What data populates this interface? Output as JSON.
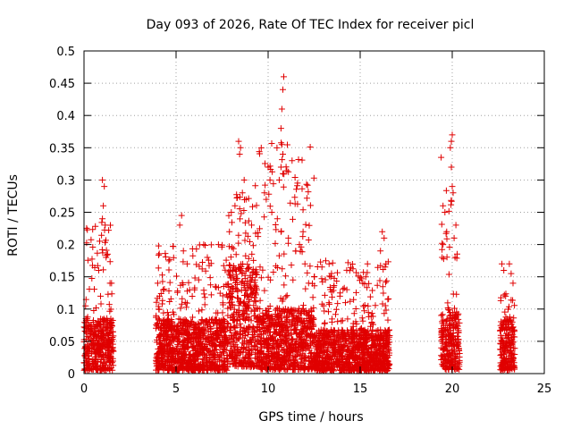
{
  "chart_data": {
    "type": "scatter",
    "title": "Day 093 of 2026, Rate Of TEC Index for receiver picl",
    "xlabel": "GPS time / hours",
    "ylabel": "ROTI / TECUs",
    "xlim": [
      0,
      25
    ],
    "ylim": [
      0,
      0.5
    ],
    "xticks": [
      "0",
      "5",
      "10",
      "15",
      "20",
      "25"
    ],
    "yticks": [
      "0",
      "0.05",
      "0.1",
      "0.15",
      "0.2",
      "0.25",
      "0.3",
      "0.35",
      "0.4",
      "0.45",
      "0.5"
    ],
    "grid": true,
    "marker": "+",
    "color": "#e00000",
    "series": [
      {
        "name": "ROTI",
        "clusters": [
          {
            "x_range": [
              0.0,
              1.6
            ],
            "y_typical": 0.05,
            "y_max": 0.3
          },
          {
            "x_range": [
              3.9,
              7.8
            ],
            "y_typical": 0.05,
            "y_max": 0.25
          },
          {
            "x_range": [
              7.8,
              9.4
            ],
            "y_typical": 0.1,
            "y_max": 0.36
          },
          {
            "x_range": [
              9.4,
              12.5
            ],
            "y_typical": 0.06,
            "y_max": 0.46
          },
          {
            "x_range": [
              12.5,
              16.6
            ],
            "y_typical": 0.04,
            "y_max": 0.22
          },
          {
            "x_range": [
              19.4,
              20.4
            ],
            "y_typical": 0.06,
            "y_max": 0.37
          },
          {
            "x_range": [
              22.6,
              23.4
            ],
            "y_typical": 0.05,
            "y_max": 0.17
          }
        ],
        "points": [
          [
            0.1,
            0.085
          ],
          [
            0.2,
            0.07
          ],
          [
            1.0,
            0.3
          ],
          [
            1.1,
            0.29
          ],
          [
            1.05,
            0.26
          ],
          [
            1.0,
            0.24
          ],
          [
            1.15,
            0.23
          ],
          [
            1.2,
            0.18
          ],
          [
            0.8,
            0.16
          ],
          [
            0.9,
            0.12
          ],
          [
            4.0,
            0.14
          ],
          [
            4.1,
            0.12
          ],
          [
            5.3,
            0.245
          ],
          [
            5.2,
            0.23
          ],
          [
            5.4,
            0.19
          ],
          [
            5.6,
            0.17
          ],
          [
            6.5,
            0.2
          ],
          [
            6.7,
            0.18
          ],
          [
            7.3,
            0.2
          ],
          [
            8.4,
            0.36
          ],
          [
            8.5,
            0.35
          ],
          [
            8.45,
            0.34
          ],
          [
            8.7,
            0.3
          ],
          [
            8.6,
            0.28
          ],
          [
            8.2,
            0.26
          ],
          [
            8.0,
            0.25
          ],
          [
            7.9,
            0.22
          ],
          [
            8.8,
            0.27
          ],
          [
            9.1,
            0.23
          ],
          [
            9.8,
            0.28
          ],
          [
            9.9,
            0.27
          ],
          [
            10.0,
            0.32
          ],
          [
            10.1,
            0.3
          ],
          [
            10.2,
            0.25
          ],
          [
            10.5,
            0.24
          ],
          [
            10.7,
            0.22
          ],
          [
            10.85,
            0.46
          ],
          [
            10.8,
            0.44
          ],
          [
            10.75,
            0.41
          ],
          [
            10.7,
            0.38
          ],
          [
            10.75,
            0.355
          ],
          [
            10.8,
            0.34
          ],
          [
            10.7,
            0.32
          ],
          [
            10.8,
            0.31
          ],
          [
            11.3,
            0.33
          ],
          [
            10.6,
            0.3
          ],
          [
            11.1,
            0.21
          ],
          [
            11.9,
            0.22
          ],
          [
            11.7,
            0.2
          ],
          [
            11.5,
            0.19
          ],
          [
            12.0,
            0.17
          ],
          [
            12.5,
            0.15
          ],
          [
            12.2,
            0.14
          ],
          [
            13.9,
            0.12
          ],
          [
            14.2,
            0.11
          ],
          [
            15.4,
            0.17
          ],
          [
            15.3,
            0.15
          ],
          [
            16.2,
            0.22
          ],
          [
            16.3,
            0.21
          ],
          [
            16.1,
            0.19
          ],
          [
            16.4,
            0.17
          ],
          [
            19.4,
            0.335
          ],
          [
            19.5,
            0.26
          ],
          [
            19.6,
            0.25
          ],
          [
            19.7,
            0.22
          ],
          [
            19.5,
            0.2
          ],
          [
            19.45,
            0.18
          ],
          [
            20.0,
            0.37
          ],
          [
            19.95,
            0.36
          ],
          [
            19.9,
            0.35
          ],
          [
            19.95,
            0.32
          ],
          [
            20.0,
            0.29
          ],
          [
            20.05,
            0.28
          ],
          [
            20.2,
            0.23
          ],
          [
            20.1,
            0.21
          ],
          [
            20.15,
            0.18
          ],
          [
            22.7,
            0.17
          ],
          [
            22.8,
            0.16
          ],
          [
            23.1,
            0.17
          ],
          [
            23.2,
            0.155
          ],
          [
            23.3,
            0.14
          ],
          [
            22.9,
            0.12
          ]
        ]
      }
    ]
  }
}
